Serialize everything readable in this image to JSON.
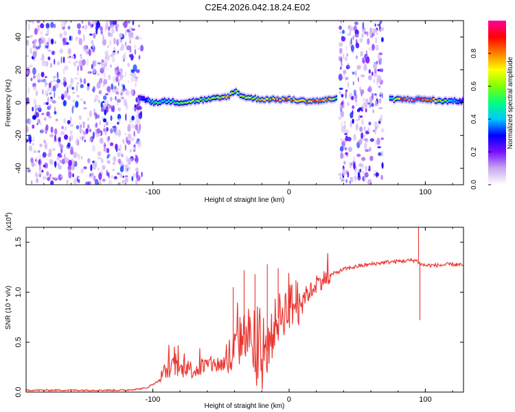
{
  "figure_title": "C2E4.2026.042.18.24.E02",
  "chart_data": [
    {
      "type": "heatmap",
      "title": "C2E4.2026.042.18.24.E02",
      "xlabel": "Height of straight line (km)",
      "ylabel": "Frequency (Hz)",
      "xlim": [
        -193,
        128
      ],
      "ylim": [
        -50,
        50
      ],
      "x_ticks": [
        -100,
        0,
        100
      ],
      "x_tick_labels": [
        "-100",
        "0",
        "100"
      ],
      "y_ticks": [
        -40,
        -20,
        0,
        20,
        40
      ],
      "y_tick_labels": [
        "-40",
        "-20",
        "0",
        "20",
        "40"
      ],
      "colorbar": {
        "label": "Normalized spectral amplitude",
        "range": [
          0,
          1
        ],
        "ticks": [
          0.0,
          0.2,
          0.4,
          0.6,
          0.8
        ],
        "tick_labels": [
          "0.0",
          "0.2",
          "0.4",
          "0.6",
          "0.8"
        ],
        "stops": [
          "#ffffff",
          "#c8a8f0",
          "#7a10ff",
          "#0000ff",
          "#00c8ff",
          "#00ff80",
          "#80ff00",
          "#ffff00",
          "#ff8000",
          "#ff0000",
          "#ff00a0"
        ]
      },
      "noise_regions": [
        [
          -193,
          -108
        ],
        [
          37,
          69
        ]
      ],
      "signal_ridge": {
        "x": [
          -110,
          -100,
          -90,
          -80,
          -70,
          -60,
          -50,
          -45,
          -40,
          -35,
          -30,
          -20,
          -10,
          0,
          10,
          20,
          30,
          34,
          74,
          80,
          90,
          100,
          110,
          120,
          128
        ],
        "freq_hz": [
          3,
          0,
          1,
          0,
          1,
          2,
          3,
          4,
          7,
          4,
          3,
          2,
          2,
          2,
          1,
          1,
          2,
          3,
          2,
          2,
          2,
          2,
          1,
          1,
          1
        ],
        "amplitude": [
          0.25,
          0.55,
          0.5,
          0.55,
          0.6,
          0.55,
          0.75,
          0.8,
          0.65,
          0.6,
          0.6,
          0.75,
          0.85,
          0.9,
          0.85,
          0.9,
          0.8,
          0.5,
          0.5,
          0.9,
          0.95,
          0.9,
          0.7,
          0.4,
          0.3
        ]
      }
    },
    {
      "type": "line",
      "xlabel": "Height of straight line (km)",
      "ylabel": "SNR (10 * v/v)",
      "y_scale_label": "(x10",
      "y_scale_exponent": "4",
      "xlim": [
        -193,
        128
      ],
      "ylim": [
        0,
        1.65
      ],
      "x_ticks": [
        -100,
        0,
        100
      ],
      "x_tick_labels": [
        "-100",
        "0",
        "100"
      ],
      "y_ticks": [
        0.0,
        0.5,
        1.0,
        1.5
      ],
      "y_tick_labels": [
        "0.0",
        "0.5",
        "1.0",
        "1.5"
      ],
      "series": [
        {
          "name": "SNR",
          "color": "#e8302a",
          "x": [
            -193,
            -120,
            -105,
            -95,
            -90,
            -85,
            -80,
            -75,
            -70,
            -60,
            -50,
            -45,
            -40,
            -35,
            -30,
            -27,
            -25,
            -20,
            -15,
            -10,
            -5,
            0,
            5,
            10,
            15,
            20,
            25,
            30,
            35,
            40,
            50,
            60,
            70,
            80,
            90,
            93,
            95,
            97,
            100,
            110,
            120,
            128
          ],
          "y": [
            0.02,
            0.02,
            0.04,
            0.12,
            0.22,
            0.26,
            0.22,
            0.25,
            0.22,
            0.27,
            0.28,
            0.3,
            0.4,
            0.55,
            0.62,
            0.5,
            0.2,
            0.25,
            0.45,
            0.7,
            0.8,
            0.85,
            0.88,
            0.95,
            1.0,
            1.08,
            1.13,
            1.17,
            1.2,
            1.23,
            1.26,
            1.28,
            1.3,
            1.31,
            1.32,
            1.32,
            1.3,
            1.28,
            1.27,
            1.27,
            1.28,
            1.27
          ],
          "spikes": [
            {
              "x": -41,
              "y": 1.05
            },
            {
              "x": -33,
              "y": 1.22
            },
            {
              "x": -25,
              "y": 1.18
            },
            {
              "x": -16,
              "y": 1.28
            },
            {
              "x": -8,
              "y": 1.24
            },
            {
              "x": 5,
              "y": 1.12
            },
            {
              "x": 95,
              "y": 1.65
            },
            {
              "x": 96,
              "y": 0.72
            }
          ]
        }
      ]
    }
  ]
}
